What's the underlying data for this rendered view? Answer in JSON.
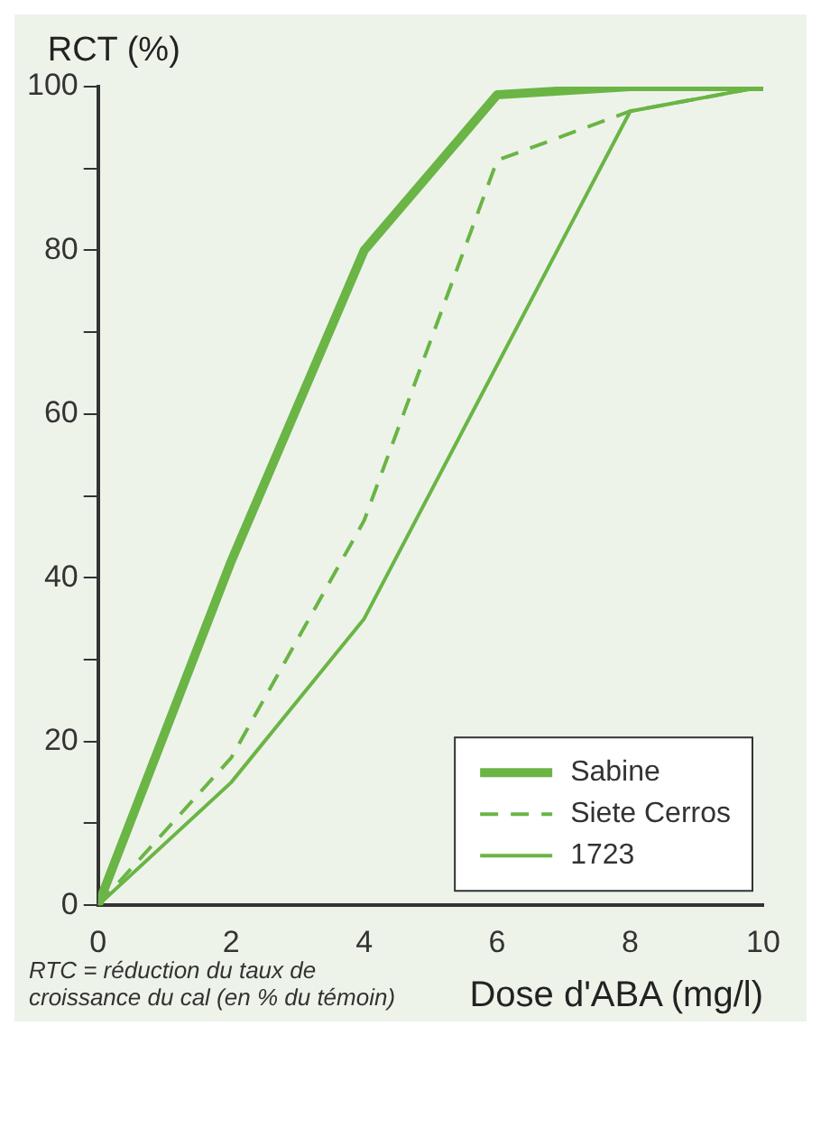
{
  "chart_data": {
    "type": "line",
    "xlabel": "Dose d'ABA (mg/l)",
    "ylabel": "RCT (%)",
    "annotations": [
      "RTC = réduction du taux de croissance du cal (en % du témoin)"
    ],
    "x": [
      0,
      2,
      4,
      6,
      8,
      10
    ],
    "series": [
      {
        "name": "Sabine",
        "color": "#6ab545",
        "values": [
          0,
          42,
          80,
          99,
          100,
          100
        ],
        "line_style": "solid"
      },
      {
        "name": "Siete Cerros",
        "color": "#6ab545",
        "values": [
          0,
          18,
          47,
          91,
          97,
          100
        ],
        "line_style": "dashed"
      },
      {
        "name": "1723",
        "color": "#6ab545",
        "x": [
          0,
          2,
          4,
          8,
          10
        ],
        "values": [
          0,
          15,
          35,
          97,
          100
        ],
        "line_style": "solid"
      }
    ],
    "xlim": [
      0,
      10
    ],
    "xticks": [
      0,
      2,
      4,
      6,
      8,
      10
    ],
    "ylim": [
      0,
      100
    ],
    "yticks": [
      0,
      {
        "value": 10,
        "label": null
      },
      20,
      {
        "value": 30,
        "label": null
      },
      40,
      {
        "value": 50,
        "label": null
      },
      60,
      {
        "value": 70,
        "label": null
      },
      80,
      {
        "value": 90,
        "label": null
      },
      100
    ],
    "grid": false,
    "legend": "bottom right",
    "marker": "none"
  }
}
